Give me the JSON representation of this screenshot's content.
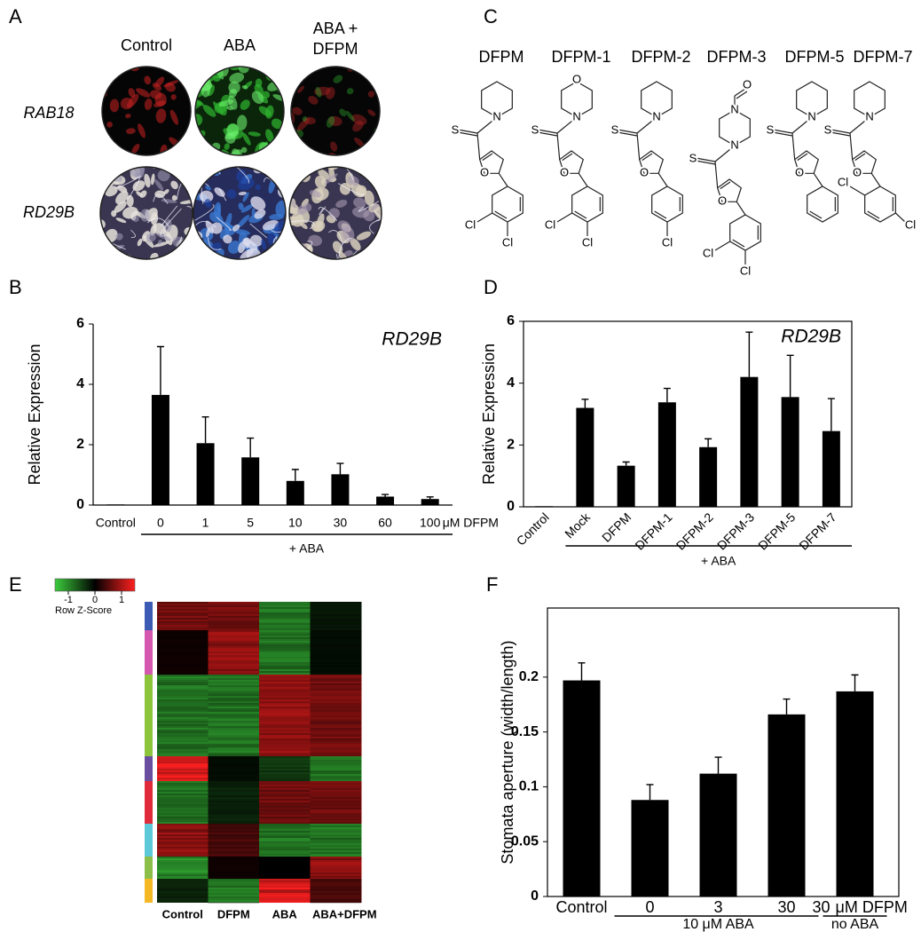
{
  "figure_a": {
    "letter": "A",
    "columns": [
      "Control",
      "ABA"
    ],
    "column_3": [
      "ABA +",
      "DFPM"
    ],
    "rows": [
      "RAB18",
      "RD29B"
    ]
  },
  "figure_c": {
    "letter": "C",
    "compounds": [
      {
        "name": "DFPM",
        "atoms": [
          "N",
          "S",
          "O",
          "Cl",
          "Cl"
        ]
      },
      {
        "name": "DFPM-1",
        "atoms": [
          "O",
          "N",
          "S",
          "O",
          "Cl",
          "Cl"
        ]
      },
      {
        "name": "DFPM-2",
        "atoms": [
          "N",
          "S",
          "O",
          "Cl"
        ]
      },
      {
        "name": "DFPM-3",
        "atoms": [
          "O",
          "N",
          "N",
          "S",
          "O",
          "Cl",
          "Cl"
        ]
      },
      {
        "name": "DFPM-5",
        "atoms": [
          "N",
          "S",
          "O"
        ]
      },
      {
        "name": "DFPM-7",
        "atoms": [
          "N",
          "S",
          "O",
          "Cl",
          "Cl"
        ]
      }
    ]
  },
  "chart_data": [
    {
      "panel": "B",
      "type": "bar",
      "annotation": "RD29B",
      "ylabel": "Relative Expression",
      "categories": [
        "Control",
        "0",
        "1",
        "5",
        "10",
        "30",
        "60",
        "100"
      ],
      "values": [
        0.02,
        3.65,
        2.05,
        1.58,
        0.8,
        1.02,
        0.28,
        0.2
      ],
      "errors": [
        null,
        1.6,
        0.87,
        0.64,
        0.38,
        0.36,
        0.07,
        0.07
      ],
      "unit": "μM DFPM",
      "group_label": "+ ABA",
      "color": "#000000",
      "ylim": [
        0,
        6
      ],
      "yticks": [
        0,
        2,
        4,
        6
      ]
    },
    {
      "panel": "D",
      "type": "bar",
      "annotation": "RD29B",
      "ylabel": "Relative Expression",
      "categories": [
        "Control",
        "Mock",
        "DFPM",
        "DFPM-1",
        "DFPM-2",
        "DFPM-3",
        "DFPM-5",
        "DFPM-7"
      ],
      "values": [
        0.02,
        3.2,
        1.33,
        3.38,
        1.93,
        4.2,
        3.55,
        2.45
      ],
      "errors": [
        null,
        0.28,
        0.12,
        0.45,
        0.27,
        1.45,
        1.35,
        1.05
      ],
      "group_label": "+ ABA",
      "color": "#000000",
      "ylim": [
        0,
        6
      ],
      "yticks": [
        0,
        2,
        4,
        6
      ]
    },
    {
      "panel": "E",
      "type": "heatmap",
      "columns": [
        "Control",
        "DFPM",
        "ABA",
        "ABA+DFPM"
      ],
      "colorbar_label": "Row Z-Score",
      "clim": [
        -1.5,
        1.5
      ],
      "cticks": [
        -1,
        0,
        1
      ],
      "colorscale": [
        "#3ccc3c",
        "#000000",
        "#ff2020"
      ],
      "clusters": [
        {
          "color": "#3b5bb5",
          "z": [
            0.8,
            0.8,
            -1,
            -0.2
          ]
        },
        {
          "color": "#d457b0",
          "z": [
            0.1,
            1,
            -1,
            -0.1
          ]
        },
        {
          "color": "#8cc43c",
          "z": [
            -1,
            -1,
            1,
            0.8
          ]
        },
        {
          "color": "#6a4fa0",
          "z": [
            1.5,
            -0.1,
            -0.5,
            -1
          ]
        },
        {
          "color": "#e02b3a",
          "z": [
            -1,
            -0.3,
            0.8,
            0.8
          ]
        },
        {
          "color": "#5cc8d8",
          "z": [
            1,
            0.5,
            -1,
            -1
          ]
        },
        {
          "color": "#8cbf4a",
          "z": [
            -1.2,
            0.1,
            0,
            1
          ]
        },
        {
          "color": "#f4b824",
          "z": [
            -0.3,
            -1,
            1.5,
            0.5
          ]
        }
      ]
    },
    {
      "panel": "F",
      "type": "bar",
      "ylabel": "Stomata aperture (width/length)",
      "categories": [
        "Control",
        "0",
        "3",
        "30",
        "30"
      ],
      "values": [
        0.197,
        0.088,
        0.112,
        0.166,
        0.187
      ],
      "errors": [
        0.016,
        0.014,
        0.015,
        0.014,
        0.015
      ],
      "unit": "μM DFPM",
      "groups": [
        "10 μM ABA",
        "no ABA"
      ],
      "color": "#000000",
      "ylim": [
        0,
        0.263
      ],
      "yticks": [
        0,
        0.05,
        0.1,
        0.15,
        0.2
      ]
    }
  ]
}
